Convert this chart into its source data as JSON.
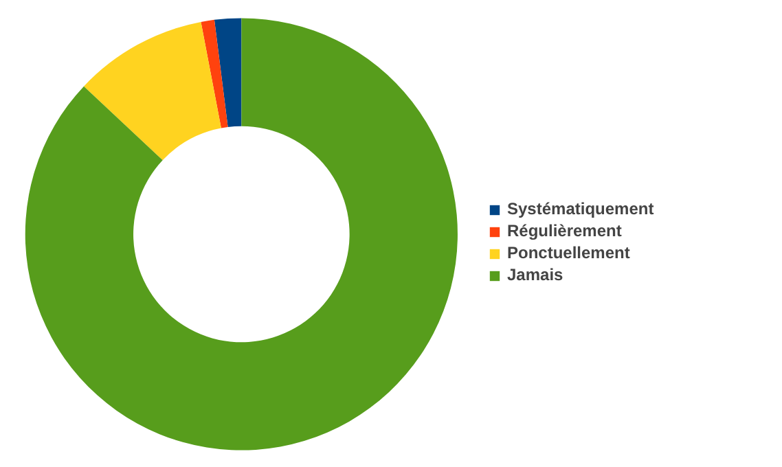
{
  "chart_data": {
    "type": "donut",
    "categories": [
      "Systématiquement",
      "Régulièrement",
      "Ponctuellement",
      "Jamais"
    ],
    "values": [
      2,
      1,
      10,
      87
    ],
    "colors": [
      "#004586",
      "#ff420e",
      "#ffd320",
      "#579d1c"
    ],
    "legend": "right"
  }
}
